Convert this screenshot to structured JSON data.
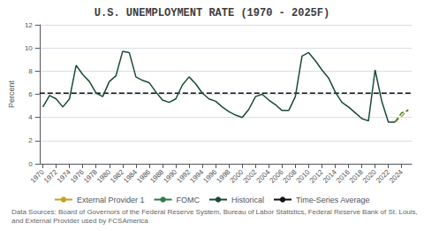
{
  "chart_data": {
    "type": "line",
    "title": "U.S. UNEMPLOYMENT RATE (1970 - 2025F)",
    "y_label": "Percent",
    "annotation": "Data Sources: Board of Governors of the Federal Reserve System, Bureau of Labor Statistics, Federal Reserve Bank of St. Louis, and External Provider used by FCSAmerica",
    "xlim": [
      1969.5,
      2025.5
    ],
    "xticks": [
      1970,
      1972,
      1974,
      1976,
      1978,
      1980,
      1982,
      1984,
      1986,
      1988,
      1990,
      1992,
      1994,
      1996,
      1998,
      2000,
      2002,
      2004,
      2006,
      2008,
      2010,
      2012,
      2014,
      2016,
      2018,
      2020,
      2022,
      2024
    ],
    "ylim": [
      0,
      12
    ],
    "yticks": [
      0,
      2,
      4,
      6,
      8,
      10,
      12
    ],
    "grid": true,
    "legend": "bottom",
    "series": [
      {
        "name": "External Provider 1",
        "color": "#c8a020",
        "line_style": "dashed",
        "x": [
          2023,
          2024,
          2025
        ],
        "values": [
          3.6,
          4.1,
          4.7
        ]
      },
      {
        "name": "FOMC",
        "color": "#2e7d45",
        "line_style": "dashed",
        "x": [
          2023,
          2024,
          2025
        ],
        "values": [
          3.6,
          4.4,
          4.6
        ]
      },
      {
        "name": "Historical",
        "color": "#1a4a35",
        "line_style": "solid",
        "x": [
          1970,
          1971,
          1972,
          1973,
          1974,
          1975,
          1976,
          1977,
          1978,
          1979,
          1980,
          1981,
          1982,
          1983,
          1984,
          1985,
          1986,
          1987,
          1988,
          1989,
          1990,
          1991,
          1992,
          1993,
          1994,
          1995,
          1996,
          1997,
          1998,
          1999,
          2000,
          2001,
          2002,
          2003,
          2004,
          2005,
          2006,
          2007,
          2008,
          2009,
          2010,
          2011,
          2012,
          2013,
          2014,
          2015,
          2016,
          2017,
          2018,
          2019,
          2020,
          2021,
          2022,
          2023
        ],
        "values": [
          4.9,
          5.9,
          5.6,
          4.9,
          5.6,
          8.5,
          7.7,
          7.1,
          6.1,
          5.8,
          7.1,
          7.6,
          9.7,
          9.6,
          7.5,
          7.2,
          7.0,
          6.2,
          5.5,
          5.3,
          5.6,
          6.8,
          7.5,
          6.9,
          6.1,
          5.6,
          5.4,
          4.9,
          4.5,
          4.2,
          4.0,
          4.7,
          5.8,
          6.0,
          5.5,
          5.1,
          4.6,
          4.6,
          5.8,
          9.3,
          9.6,
          8.9,
          8.1,
          7.4,
          6.2,
          5.3,
          4.9,
          4.4,
          3.9,
          3.7,
          8.1,
          5.4,
          3.6,
          3.6
        ]
      },
      {
        "name": "Time-Series Average",
        "type": "hline",
        "color": "#111111",
        "line_style": "dashed",
        "values": [
          6.1
        ]
      }
    ]
  }
}
